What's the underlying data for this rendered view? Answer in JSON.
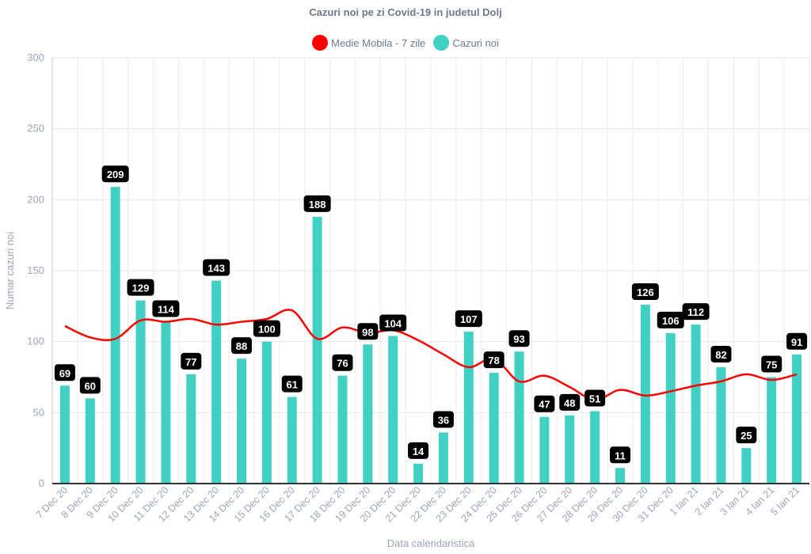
{
  "chart_data": {
    "type": "bar",
    "title": "Cazuri noi pe zi Covid-19 in judetul Dolj",
    "xlabel": "Data calendaristica",
    "ylabel": "Numar cazuri noi",
    "ylim": [
      0,
      300
    ],
    "yticks": [
      0,
      50,
      100,
      150,
      200,
      250,
      300
    ],
    "grid": true,
    "legend_position": "top-center",
    "categories": [
      "7 Dec 20",
      "8 Dec 20",
      "9 Dec 20",
      "10 Dec 20",
      "11 Dec 20",
      "12 Dec 20",
      "13 Dec 20",
      "14 Dec 20",
      "15 Dec 20",
      "16 Dec 20",
      "17 Dec 20",
      "18 Dec 20",
      "19 Dec 20",
      "20 Dec 20",
      "21 Dec 20",
      "22 Dec 20",
      "23 Dec 20",
      "24 Dec 20",
      "25 Dec 20",
      "26 Dec 20",
      "27 Dec 20",
      "28 Dec 20",
      "29 Dec 20",
      "30 Dec 20",
      "31 Dec 20",
      "1 Ian 21",
      "2 Ian 21",
      "3 Ian 21",
      "4 Ian 21",
      "5 Ian 21"
    ],
    "series": [
      {
        "name": "Cazuri noi",
        "kind": "bar",
        "color": "#40d0c4",
        "values": [
          69,
          60,
          209,
          129,
          114,
          77,
          143,
          88,
          100,
          61,
          188,
          76,
          98,
          104,
          14,
          36,
          107,
          78,
          93,
          47,
          48,
          51,
          11,
          126,
          106,
          112,
          82,
          25,
          75,
          91
        ]
      },
      {
        "name": "Medie Mobila - 7 zile",
        "kind": "line",
        "color": "#ff0000",
        "values": [
          111,
          103,
          102,
          115,
          114,
          116,
          112,
          114,
          116,
          122,
          102,
          110,
          106,
          108,
          101,
          91,
          82,
          88,
          72,
          76,
          68,
          59,
          66,
          62,
          65,
          69,
          72,
          77,
          73,
          77
        ]
      }
    ]
  }
}
